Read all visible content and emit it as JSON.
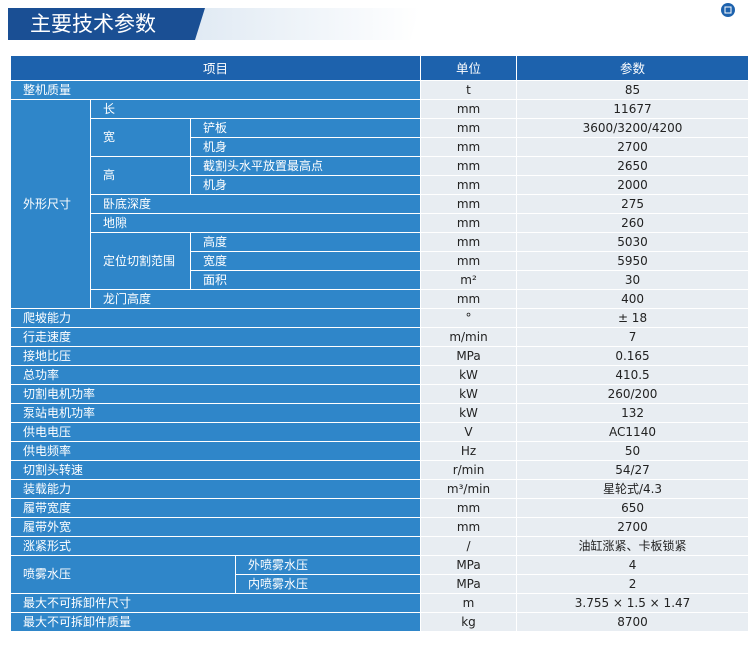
{
  "header": {
    "title": "主要技术参数"
  },
  "table": {
    "columns": [
      "项目",
      "单位",
      "参数"
    ],
    "rows": [
      {
        "labels": [
          "整机质量"
        ],
        "unit": "t",
        "value": "85"
      },
      {
        "labels": [
          "外形尺寸",
          "长"
        ],
        "unit": "mm",
        "value": "11677"
      },
      {
        "labels": [
          "宽",
          "铲板"
        ],
        "unit": "mm",
        "value": "3600/3200/4200"
      },
      {
        "labels": [
          "机身"
        ],
        "unit": "mm",
        "value": "2700"
      },
      {
        "labels": [
          "高",
          "截割头水平放置最高点"
        ],
        "unit": "mm",
        "value": "2650"
      },
      {
        "labels": [
          "机身"
        ],
        "unit": "mm",
        "value": "2000"
      },
      {
        "labels": [
          "卧底深度"
        ],
        "unit": "mm",
        "value": "275"
      },
      {
        "labels": [
          "地隙"
        ],
        "unit": "mm",
        "value": "260"
      },
      {
        "labels": [
          "定位切割范围",
          "高度"
        ],
        "unit": "mm",
        "value": "5030"
      },
      {
        "labels": [
          "宽度"
        ],
        "unit": "mm",
        "value": "5950"
      },
      {
        "labels": [
          "面积"
        ],
        "unit": "m²",
        "value": "30"
      },
      {
        "labels": [
          "龙门高度"
        ],
        "unit": "mm",
        "value": "400"
      },
      {
        "labels": [
          "爬坡能力"
        ],
        "unit": "°",
        "value": "± 18"
      },
      {
        "labels": [
          "行走速度"
        ],
        "unit": "m/min",
        "value": "7"
      },
      {
        "labels": [
          "接地比压"
        ],
        "unit": "MPa",
        "value": "0.165"
      },
      {
        "labels": [
          "总功率"
        ],
        "unit": "kW",
        "value": "410.5"
      },
      {
        "labels": [
          "切割电机功率"
        ],
        "unit": "kW",
        "value": "260/200"
      },
      {
        "labels": [
          "泵站电机功率"
        ],
        "unit": "kW",
        "value": "132"
      },
      {
        "labels": [
          "供电电压"
        ],
        "unit": "V",
        "value": "AC1140"
      },
      {
        "labels": [
          "供电频率"
        ],
        "unit": "Hz",
        "value": "50"
      },
      {
        "labels": [
          "切割头转速"
        ],
        "unit": "r/min",
        "value": "54/27"
      },
      {
        "labels": [
          "装载能力"
        ],
        "unit": "m³/min",
        "value": "星轮式/4.3"
      },
      {
        "labels": [
          "履带宽度"
        ],
        "unit": "mm",
        "value": "650"
      },
      {
        "labels": [
          "履带外宽"
        ],
        "unit": "mm",
        "value": "2700"
      },
      {
        "labels": [
          "涨紧形式"
        ],
        "unit": "/",
        "value": "油缸涨紧、卡板锁紧"
      },
      {
        "labels": [
          "喷雾水压",
          "外喷雾水压"
        ],
        "unit": "MPa",
        "value": "4"
      },
      {
        "labels": [
          "内喷雾水压"
        ],
        "unit": "MPa",
        "value": "2"
      },
      {
        "labels": [
          "最大不可拆卸件尺寸"
        ],
        "unit": "m",
        "value": "3.755 × 1.5 × 1.47"
      },
      {
        "labels": [
          "最大不可拆卸件质量"
        ],
        "unit": "kg",
        "value": "8700"
      }
    ]
  }
}
